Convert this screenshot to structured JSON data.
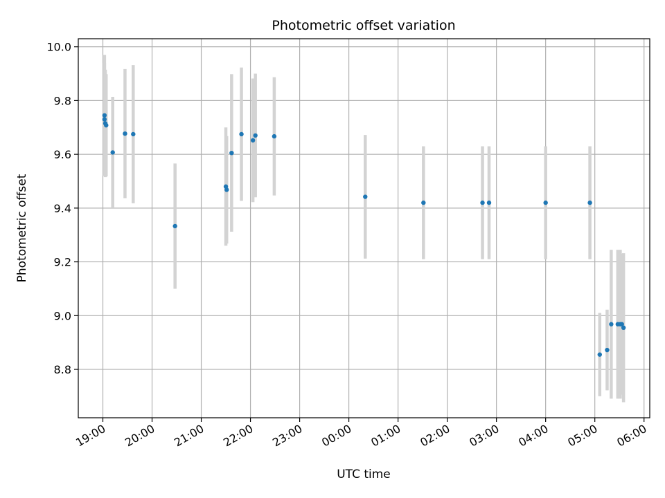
{
  "chart_data": {
    "type": "scatter",
    "title": "Photometric offset variation",
    "xlabel": "UTC time",
    "ylabel": "Photometric offset",
    "x_axis": {
      "kind": "datetime",
      "range": [
        "18:30",
        "06:07"
      ],
      "ticks": [
        "19:00",
        "20:00",
        "21:00",
        "22:00",
        "23:00",
        "00:00",
        "01:00",
        "02:00",
        "03:00",
        "04:00",
        "05:00",
        "06:00"
      ],
      "tick_label_rotation_deg": 30
    },
    "y_axis": {
      "range": [
        8.62,
        10.03
      ],
      "ticks": [
        "8.8",
        "9.0",
        "9.2",
        "9.4",
        "9.6",
        "9.8",
        "10.0"
      ]
    },
    "grid": true,
    "colors": {
      "points": "#1f77b4",
      "error_bars": "#d3d3d3",
      "grid": "#b0b0b0"
    },
    "points": [
      {
        "time": "19:02",
        "y": 9.745,
        "err": 0.225
      },
      {
        "time": "19:02",
        "y": 9.73,
        "err": 0.21
      },
      {
        "time": "19:03",
        "y": 9.715,
        "err": 0.2
      },
      {
        "time": "19:04",
        "y": 9.708,
        "err": 0.19
      },
      {
        "time": "19:12",
        "y": 9.607,
        "err": 0.207
      },
      {
        "time": "19:27",
        "y": 9.677,
        "err": 0.24
      },
      {
        "time": "19:37",
        "y": 9.675,
        "err": 0.257
      },
      {
        "time": "20:28",
        "y": 9.333,
        "err": 0.233
      },
      {
        "time": "21:30",
        "y": 9.48,
        "err": 0.22
      },
      {
        "time": "21:31",
        "y": 9.468,
        "err": 0.2
      },
      {
        "time": "21:37",
        "y": 9.605,
        "err": 0.293
      },
      {
        "time": "21:49",
        "y": 9.675,
        "err": 0.248
      },
      {
        "time": "22:03",
        "y": 9.652,
        "err": 0.23
      },
      {
        "time": "22:06",
        "y": 9.67,
        "err": 0.23
      },
      {
        "time": "22:29",
        "y": 9.667,
        "err": 0.22
      },
      {
        "time": "00:20",
        "y": 9.442,
        "err": 0.23
      },
      {
        "time": "01:31",
        "y": 9.42,
        "err": 0.21
      },
      {
        "time": "02:43",
        "y": 9.42,
        "err": 0.21
      },
      {
        "time": "02:51",
        "y": 9.42,
        "err": 0.21
      },
      {
        "time": "04:00",
        "y": 9.42,
        "err": 0.21
      },
      {
        "time": "04:54",
        "y": 9.42,
        "err": 0.21
      },
      {
        "time": "05:06",
        "y": 8.855,
        "err": 0.155
      },
      {
        "time": "05:15",
        "y": 8.872,
        "err": 0.15
      },
      {
        "time": "05:20",
        "y": 8.968,
        "err": 0.277
      },
      {
        "time": "05:28",
        "y": 8.968,
        "err": 0.277
      },
      {
        "time": "05:31",
        "y": 8.968,
        "err": 0.277
      },
      {
        "time": "05:33",
        "y": 8.968,
        "err": 0.262
      },
      {
        "time": "05:35",
        "y": 8.955,
        "err": 0.277
      }
    ]
  }
}
